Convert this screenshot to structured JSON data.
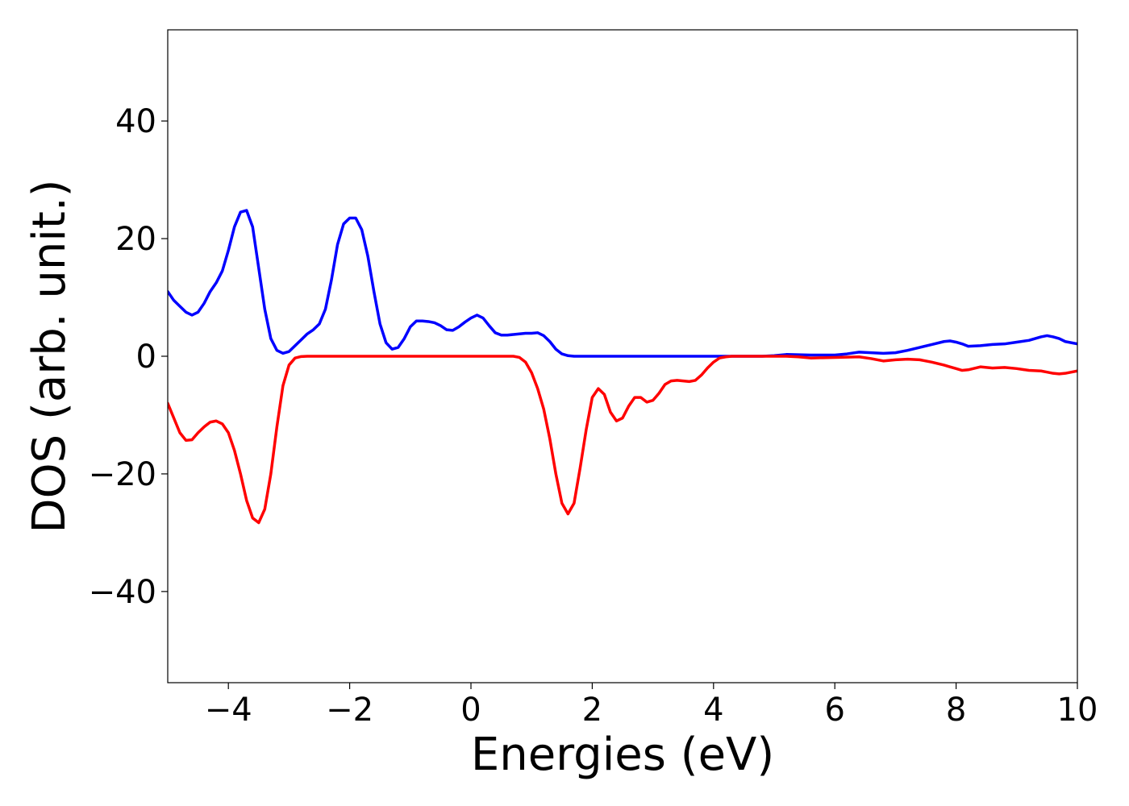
{
  "chart_data": {
    "type": "line",
    "xlabel": "Energies (eV)",
    "ylabel": "DOS (arb. unit.)",
    "x": [
      -5.0,
      -4.9,
      -4.8,
      -4.7,
      -4.6,
      -4.5,
      -4.4,
      -4.3,
      -4.2,
      -4.1,
      -4.0,
      -3.9,
      -3.8,
      -3.7,
      -3.6,
      -3.5,
      -3.4,
      -3.3,
      -3.2,
      -3.1,
      -3.0,
      -2.9,
      -2.8,
      -2.7,
      -2.6,
      -2.5,
      -2.4,
      -2.3,
      -2.2,
      -2.1,
      -2.0,
      -1.9,
      -1.8,
      -1.7,
      -1.6,
      -1.5,
      -1.4,
      -1.3,
      -1.2,
      -1.1,
      -1.0,
      -0.9,
      -0.8,
      -0.7,
      -0.6,
      -0.5,
      -0.4,
      -0.3,
      -0.2,
      -0.1,
      0.0,
      0.1,
      0.2,
      0.3,
      0.4,
      0.5,
      0.6,
      0.7,
      0.8,
      0.9,
      1.0,
      1.1,
      1.2,
      1.3,
      1.4,
      1.5,
      1.6,
      1.7,
      1.8,
      1.9,
      2.0,
      2.1,
      2.2,
      2.3,
      2.4,
      2.5,
      2.6,
      2.7,
      2.8,
      2.9,
      3.0,
      3.1,
      3.2,
      3.3,
      3.4,
      3.5,
      3.6,
      3.7,
      3.8,
      3.9,
      4.0,
      4.1,
      4.2,
      4.3,
      4.5,
      4.8,
      5.0,
      5.2,
      5.4,
      5.6,
      5.8,
      6.0,
      6.2,
      6.4,
      6.6,
      6.8,
      7.0,
      7.2,
      7.4,
      7.6,
      7.8,
      7.9,
      8.0,
      8.1,
      8.2,
      8.4,
      8.6,
      8.8,
      9.0,
      9.2,
      9.4,
      9.5,
      9.6,
      9.7,
      9.8,
      10.0
    ],
    "series": [
      {
        "color": "#0000ff",
        "values": [
          11,
          9.5,
          8.5,
          7.5,
          7,
          7.5,
          9,
          11,
          12.5,
          14.5,
          18,
          22,
          24.5,
          24.8,
          22,
          15,
          8,
          3,
          1,
          0.5,
          0.8,
          1.8,
          2.8,
          3.8,
          4.5,
          5.5,
          8,
          13,
          19,
          22.5,
          23.5,
          23.5,
          21.5,
          17,
          11,
          5.5,
          2.3,
          1.2,
          1.5,
          3,
          5,
          6,
          6,
          5.9,
          5.7,
          5.2,
          4.5,
          4.4,
          5,
          5.8,
          6.5,
          7,
          6.5,
          5.2,
          4,
          3.6,
          3.6,
          3.7,
          3.8,
          3.9,
          3.9,
          4,
          3.5,
          2.5,
          1.2,
          0.4,
          0.1,
          0,
          0,
          0,
          0,
          0,
          0,
          0,
          0,
          0,
          0,
          0,
          0,
          0,
          0,
          0,
          0,
          0,
          0,
          0,
          0,
          0,
          0,
          0,
          0,
          0,
          0,
          0,
          0,
          0,
          0.1,
          0.3,
          0.25,
          0.2,
          0.2,
          0.2,
          0.4,
          0.7,
          0.6,
          0.5,
          0.6,
          1,
          1.5,
          2,
          2.5,
          2.6,
          2.4,
          2.1,
          1.7,
          1.8,
          2,
          2.1,
          2.4,
          2.7,
          3.3,
          3.5,
          3.3,
          3.0,
          2.5,
          2.1
        ]
      },
      {
        "color": "#ff0000",
        "values": [
          -8,
          -10.5,
          -13,
          -14.3,
          -14.2,
          -13,
          -12,
          -11.2,
          -11,
          -11.5,
          -13,
          -16,
          -20,
          -24.5,
          -27.5,
          -28.3,
          -26,
          -20,
          -12,
          -5,
          -1.5,
          -0.3,
          -0.05,
          0,
          0,
          0,
          0,
          0,
          0,
          0,
          0,
          0,
          0,
          0,
          0,
          0,
          0,
          0,
          0,
          0,
          0,
          0,
          0,
          0,
          0,
          0,
          0,
          0,
          0,
          0,
          0,
          0,
          0,
          0,
          0,
          0,
          0,
          0,
          -0.2,
          -1,
          -2.8,
          -5.5,
          -9,
          -14,
          -20,
          -25,
          -26.8,
          -25,
          -19,
          -12.5,
          -7,
          -5.5,
          -6.5,
          -9.5,
          -11,
          -10.5,
          -8.5,
          -7,
          -7,
          -7.8,
          -7.5,
          -6.3,
          -4.8,
          -4.2,
          -4.1,
          -4.2,
          -4.3,
          -4.1,
          -3.2,
          -2,
          -1,
          -0.3,
          -0.1,
          0,
          0,
          0,
          0,
          0,
          -0.1,
          -0.3,
          -0.25,
          -0.2,
          -0.15,
          -0.1,
          -0.4,
          -0.8,
          -0.6,
          -0.5,
          -0.6,
          -1,
          -1.5,
          -1.8,
          -2.1,
          -2.4,
          -2.3,
          -1.8,
          -2,
          -1.9,
          -2.1,
          -2.4,
          -2.5,
          -2.7,
          -2.9,
          -3,
          -2.9,
          -2.5
        ]
      }
    ],
    "xlim": [
      -5,
      10
    ],
    "ylim": [
      -55.5,
      55.5
    ],
    "xticks": [
      {
        "value": -4,
        "label": "−4"
      },
      {
        "value": -2,
        "label": "−2"
      },
      0,
      2,
      4,
      6,
      8,
      10
    ],
    "yticks": [
      {
        "value": -40,
        "label": "−40"
      },
      {
        "value": -20,
        "label": "−20"
      },
      0,
      20,
      40
    ],
    "grid": false
  }
}
